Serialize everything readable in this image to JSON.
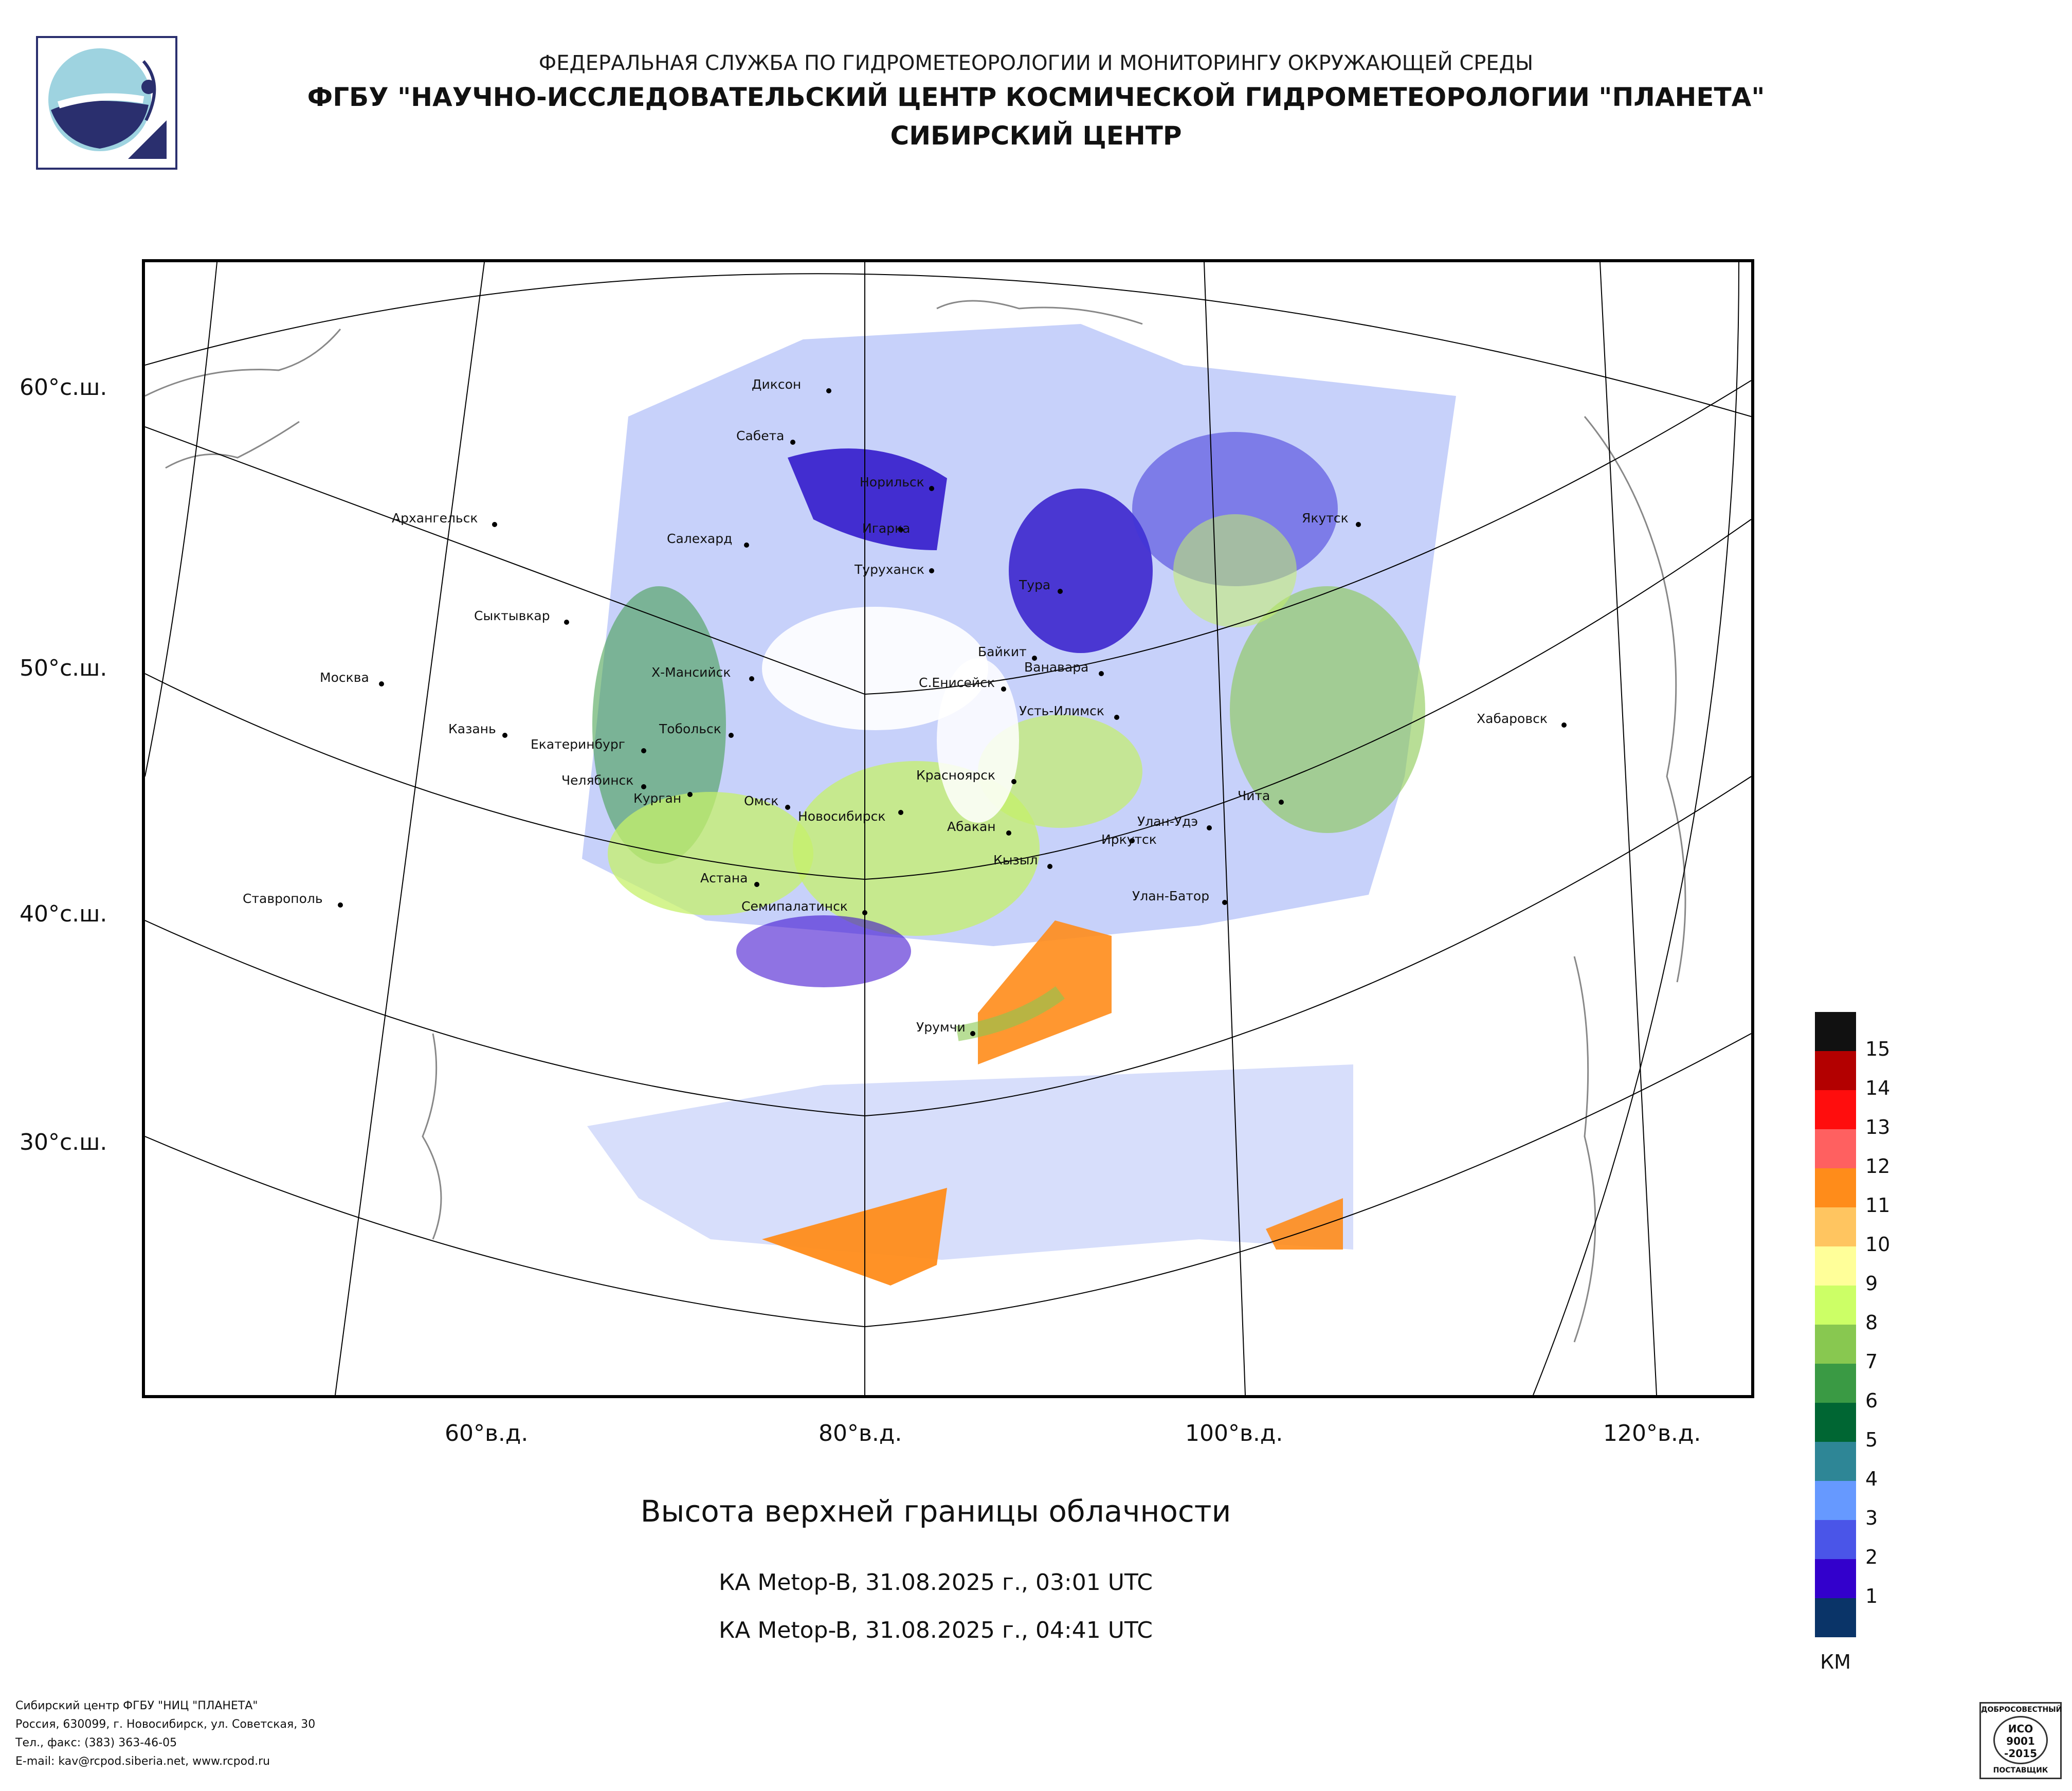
{
  "header": {
    "line1": "ФЕДЕРАЛЬНАЯ СЛУЖБА ПО ГИДРОМЕТЕОРОЛОГИИ И МОНИТОРИНГУ ОКРУЖАЮЩЕЙ СРЕДЫ",
    "line2": "ФГБУ \"НАУЧНО-ИССЛЕДОВАТЕЛЬСКИЙ ЦЕНТР КОСМИЧЕСКОЙ ГИДРОМЕТЕОРОЛОГИИ \"ПЛАНЕТА\"",
    "line3": "СИБИРСКИЙ ЦЕНТР"
  },
  "map": {
    "lat_labels": [
      "60°с.ш.",
      "50°с.ш.",
      "40°с.ш.",
      "30°с.ш."
    ],
    "lon_labels": [
      "60°в.д.",
      "80°в.д.",
      "100°в.д.",
      "120°в.д."
    ],
    "cities": [
      "Диксон",
      "Сабета",
      "Норильск",
      "Игарка",
      "Салехард",
      "Туруханск",
      "Тура",
      "Якутск",
      "Архангельск",
      "Сыктывкар",
      "Москва",
      "Х-Мансийск",
      "Байкит",
      "Ванавара",
      "С.Енисейск",
      "Усть-Илимск",
      "Казань",
      "Екатеринбург",
      "Тобольск",
      "Челябинск",
      "Курган",
      "Омск",
      "Новосибирск",
      "Красноярск",
      "Абакан",
      "Улан-Удэ",
      "Иркутск",
      "Чита",
      "Хабаровск",
      "Астана",
      "Кызыл",
      "Семипалатинск",
      "Улан-Батор",
      "Ставрополь",
      "Урумчи"
    ]
  },
  "legend": {
    "levels": [
      "15",
      "14",
      "13",
      "12",
      "11",
      "10",
      "9",
      "8",
      "7",
      "6",
      "5",
      "4",
      "3",
      "2",
      "1"
    ],
    "colors": [
      "#111111",
      "#b30000",
      "#ff0d0d",
      "#ff6060",
      "#ff8c1a",
      "#ffc560",
      "#ffff99",
      "#ccff66",
      "#88c850",
      "#3a9a44",
      "#006633",
      "#2e8696",
      "#6699ff",
      "#4a55e8",
      "#3300cc",
      "#0a3468"
    ],
    "units": "КМ"
  },
  "title": "Высота верхней границы облачности",
  "passes": [
    "КА Metop-B, 31.08.2025 г., 03:01 UTC",
    "КА Metop-B, 31.08.2025 г., 04:41 UTC"
  ],
  "footer": {
    "line1": "Сибирский центр ФГБУ \"НИЦ \"ПЛАНЕТА\"",
    "line2": "Россия, 630099, г. Новосибирск, ул. Советская, 30",
    "line3": "Тел., факс: (383) 363-46-05",
    "line4": "E-mail: kav@rcpod.siberia.net, www.rcpod.ru"
  },
  "cert": {
    "top": "ДОБРОСОВЕСТНЫЙ",
    "l1": "ИСО",
    "l2": "9001",
    "l3": "-2015",
    "bottom": "ПОСТАВЩИК"
  }
}
